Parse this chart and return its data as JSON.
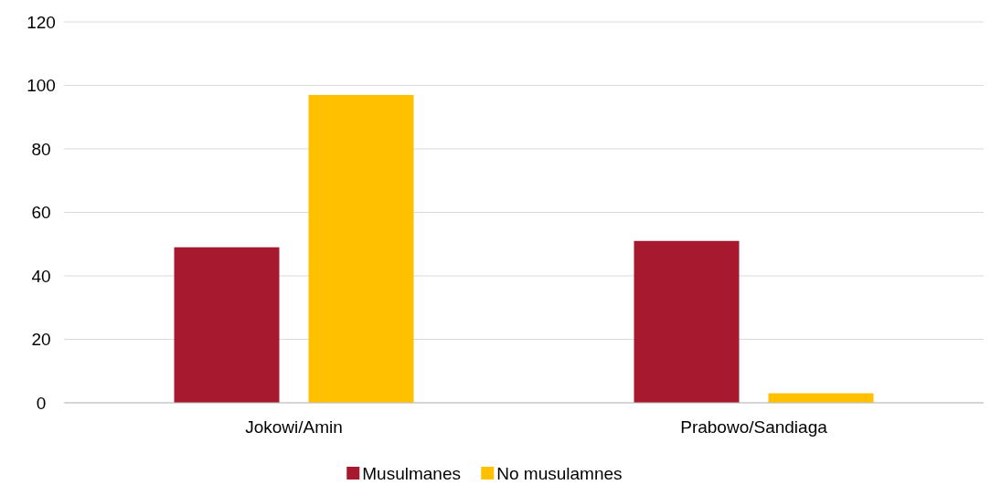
{
  "chart_data": {
    "type": "bar",
    "categories": [
      "Jokowi/Amin",
      "Prabowo/Sandiaga"
    ],
    "series": [
      {
        "name": "Musulmanes",
        "color": "#a6192e",
        "values": [
          49,
          51
        ]
      },
      {
        "name": "No musulamnes",
        "color": "#ffc000",
        "values": [
          97,
          3
        ]
      }
    ],
    "ylim": [
      0,
      120
    ],
    "yticks": [
      0,
      20,
      40,
      60,
      80,
      100,
      120
    ],
    "grid": "y",
    "legend": "bottom"
  }
}
